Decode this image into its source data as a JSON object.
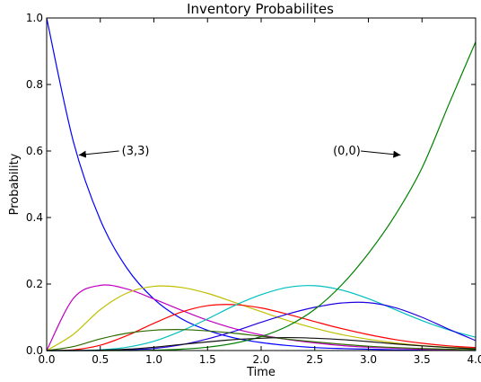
{
  "chart_data": {
    "type": "line",
    "title": "Inventory Probabilites",
    "xlabel": "Time",
    "ylabel": "Probability",
    "xlim": [
      0,
      4
    ],
    "ylim": [
      0,
      1
    ],
    "grid": false,
    "x_ticks": [
      "0.0",
      "0.5",
      "1.0",
      "1.5",
      "2.0",
      "2.5",
      "3.0",
      "3.5",
      "4.0"
    ],
    "y_ticks": [
      "0.0",
      "0.2",
      "0.4",
      "0.6",
      "0.8",
      "1.0"
    ],
    "x": [
      0.0,
      0.25,
      0.5,
      0.75,
      1.0,
      1.25,
      1.5,
      1.75,
      2.0,
      2.25,
      2.5,
      2.75,
      3.0,
      3.25,
      3.5,
      3.75,
      4.0
    ],
    "series": [
      {
        "color": "#0000ff",
        "values": [
          1.0,
          0.627,
          0.393,
          0.247,
          0.155,
          0.097,
          0.061,
          0.038,
          0.024,
          0.015,
          0.009,
          0.006,
          0.004,
          0.002,
          0.001,
          0.001,
          0.0
        ]
      },
      {
        "color": "#bf00bf",
        "values": [
          0.0,
          0.157,
          0.196,
          0.185,
          0.155,
          0.122,
          0.091,
          0.066,
          0.047,
          0.033,
          0.023,
          0.015,
          0.01,
          0.007,
          0.004,
          0.003,
          0.002
        ]
      },
      {
        "color": "#bfbf00",
        "values": [
          0.0,
          0.049,
          0.123,
          0.173,
          0.193,
          0.19,
          0.172,
          0.145,
          0.117,
          0.09,
          0.067,
          0.048,
          0.034,
          0.023,
          0.015,
          0.01,
          0.006
        ]
      },
      {
        "color": "#ff0000",
        "values": [
          0.0,
          0.002,
          0.016,
          0.045,
          0.082,
          0.115,
          0.135,
          0.138,
          0.128,
          0.109,
          0.087,
          0.066,
          0.048,
          0.033,
          0.022,
          0.014,
          0.009
        ]
      },
      {
        "color": "#00bfbf",
        "values": [
          0.0,
          0.0,
          0.002,
          0.01,
          0.028,
          0.058,
          0.095,
          0.135,
          0.168,
          0.19,
          0.195,
          0.182,
          0.156,
          0.123,
          0.09,
          0.062,
          0.04
        ]
      },
      {
        "color": "#2000e0",
        "values": [
          0.0,
          0.0,
          0.0,
          0.002,
          0.006,
          0.017,
          0.035,
          0.058,
          0.085,
          0.11,
          0.13,
          0.143,
          0.144,
          0.129,
          0.1,
          0.064,
          0.03
        ]
      },
      {
        "color": "#008000",
        "values": [
          0.0,
          0.0,
          0.0,
          0.0,
          0.001,
          0.004,
          0.01,
          0.022,
          0.042,
          0.074,
          0.124,
          0.197,
          0.292,
          0.407,
          0.549,
          0.74,
          0.928
        ]
      },
      {
        "color": "#2e6b00",
        "values": [
          0.0,
          0.012,
          0.035,
          0.052,
          0.061,
          0.063,
          0.059,
          0.052,
          0.043,
          0.034,
          0.026,
          0.019,
          0.013,
          0.009,
          0.006,
          0.004,
          0.002
        ]
      },
      {
        "color": "#111111",
        "values": [
          0.0,
          0.0,
          0.001,
          0.004,
          0.01,
          0.018,
          0.026,
          0.033,
          0.037,
          0.039,
          0.037,
          0.033,
          0.027,
          0.02,
          0.014,
          0.009,
          0.005
        ]
      }
    ],
    "annotations": [
      {
        "text": "(3,3)",
        "x": 0.3,
        "y": 0.588,
        "text_x": 0.7,
        "text_y": 0.6
      },
      {
        "text": "(0,0)",
        "x": 3.3,
        "y": 0.588,
        "text_x": 2.67,
        "text_y": 0.6
      }
    ]
  }
}
